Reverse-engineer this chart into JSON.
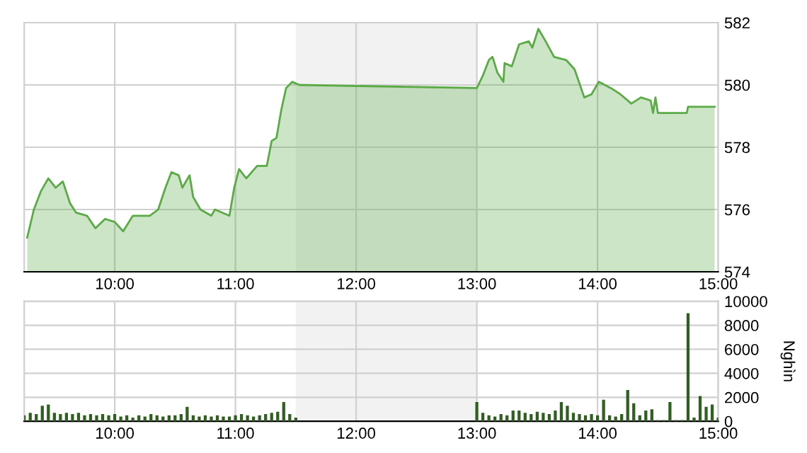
{
  "chart_data": [
    {
      "type": "area",
      "color": "#5aaa46",
      "x": [
        9.275,
        9.33,
        9.39,
        9.45,
        9.51,
        9.57,
        9.63,
        9.68,
        9.77,
        9.84,
        9.92,
        10.0,
        10.07,
        10.15,
        10.29,
        10.36,
        10.42,
        10.47,
        10.53,
        10.56,
        10.62,
        10.65,
        10.71,
        10.8,
        10.83,
        10.95,
        10.99,
        11.03,
        11.09,
        11.18,
        11.26,
        11.3,
        11.34,
        11.38,
        11.42,
        11.47,
        11.53,
        13.0,
        13.05,
        13.1,
        13.13,
        13.17,
        13.22,
        13.23,
        13.29,
        13.35,
        13.43,
        13.46,
        13.51,
        13.57,
        13.64,
        13.74,
        13.81,
        13.89,
        13.95,
        14.01,
        14.11,
        14.19,
        14.28,
        14.36,
        14.44,
        14.46,
        14.48,
        14.5,
        14.74,
        14.75,
        14.97
      ],
      "values": [
        575.1,
        576.0,
        576.6,
        577.0,
        576.7,
        576.9,
        576.2,
        575.9,
        575.8,
        575.4,
        575.7,
        575.6,
        575.3,
        575.8,
        575.8,
        576.0,
        576.7,
        577.2,
        577.1,
        576.7,
        577.1,
        576.4,
        576.0,
        575.8,
        576.0,
        575.8,
        576.7,
        577.3,
        577.0,
        577.4,
        577.4,
        578.2,
        578.3,
        579.2,
        579.9,
        580.1,
        580.0,
        579.9,
        580.3,
        580.8,
        580.9,
        580.4,
        580.1,
        580.7,
        580.6,
        581.3,
        581.4,
        581.2,
        581.8,
        581.4,
        580.9,
        580.8,
        580.5,
        579.6,
        579.7,
        580.1,
        579.9,
        579.7,
        579.4,
        579.6,
        579.5,
        579.1,
        579.6,
        579.1,
        579.1,
        579.3,
        579.3
      ],
      "xlim": [
        9.25,
        15
      ],
      "ylim": [
        574,
        582
      ],
      "yticks": [
        574,
        576,
        578,
        580,
        582
      ],
      "xticks": [
        {
          "value": 10,
          "label": "10:00"
        },
        {
          "value": 11,
          "label": "11:00"
        },
        {
          "value": 12,
          "label": "12:00"
        },
        {
          "value": 13,
          "label": "13:00"
        },
        {
          "value": 14,
          "label": "14:00"
        },
        {
          "value": 15,
          "label": "15:00"
        }
      ],
      "grid": true,
      "bands": [
        {
          "axis": "x",
          "from": 11.5,
          "to": 13,
          "color": "#f2f2f2"
        }
      ]
    },
    {
      "type": "bar",
      "color": "#2f6020",
      "ylabel": "Nghìn",
      "x": [
        9.25,
        9.3,
        9.35,
        9.4,
        9.45,
        9.5,
        9.55,
        9.6,
        9.65,
        9.7,
        9.75,
        9.8,
        9.85,
        9.9,
        9.95,
        10.0,
        10.05,
        10.1,
        10.15,
        10.2,
        10.25,
        10.3,
        10.35,
        10.4,
        10.45,
        10.5,
        10.55,
        10.6,
        10.65,
        10.7,
        10.75,
        10.8,
        10.85,
        10.9,
        10.95,
        11.0,
        11.05,
        11.1,
        11.15,
        11.2,
        11.25,
        11.3,
        11.35,
        11.4,
        11.45,
        11.5,
        13.0,
        13.05,
        13.1,
        13.15,
        13.2,
        13.25,
        13.3,
        13.35,
        13.4,
        13.45,
        13.5,
        13.55,
        13.6,
        13.65,
        13.7,
        13.75,
        13.8,
        13.85,
        13.9,
        13.95,
        14.0,
        14.05,
        14.1,
        14.15,
        14.2,
        14.25,
        14.3,
        14.35,
        14.4,
        14.45,
        14.5,
        14.55,
        14.6,
        14.65,
        14.7,
        14.75,
        14.8,
        14.85,
        14.9,
        14.95,
        15.0
      ],
      "values": [
        500,
        700,
        600,
        1300,
        1400,
        700,
        600,
        700,
        600,
        700,
        500,
        600,
        500,
        600,
        500,
        600,
        400,
        500,
        300,
        500,
        400,
        600,
        500,
        400,
        500,
        500,
        600,
        1200,
        500,
        400,
        500,
        400,
        500,
        400,
        400,
        500,
        600,
        500,
        400,
        500,
        600,
        700,
        800,
        1600,
        600,
        300,
        1600,
        700,
        500,
        400,
        600,
        500,
        900,
        900,
        700,
        600,
        800,
        700,
        600,
        900,
        1600,
        1300,
        700,
        600,
        500,
        600,
        500,
        1800,
        500,
        400,
        600,
        2600,
        1500,
        500,
        900,
        1000,
        100,
        100,
        1600,
        100,
        100,
        9000,
        300,
        2100,
        1200,
        1400,
        300
      ],
      "xlim": [
        9.25,
        15
      ],
      "ylim": [
        0,
        10000
      ],
      "yticks": [
        0,
        2000,
        4000,
        6000,
        8000,
        10000
      ],
      "xticks": [
        {
          "value": 10,
          "label": "10:00"
        },
        {
          "value": 11,
          "label": "11:00"
        },
        {
          "value": 12,
          "label": "12:00"
        },
        {
          "value": 13,
          "label": "13:00"
        },
        {
          "value": 14,
          "label": "14:00"
        },
        {
          "value": 15,
          "label": "15:00"
        }
      ],
      "grid": true,
      "bands": [
        {
          "axis": "x",
          "from": 11.5,
          "to": 13,
          "color": "#f2f2f2"
        }
      ]
    }
  ]
}
